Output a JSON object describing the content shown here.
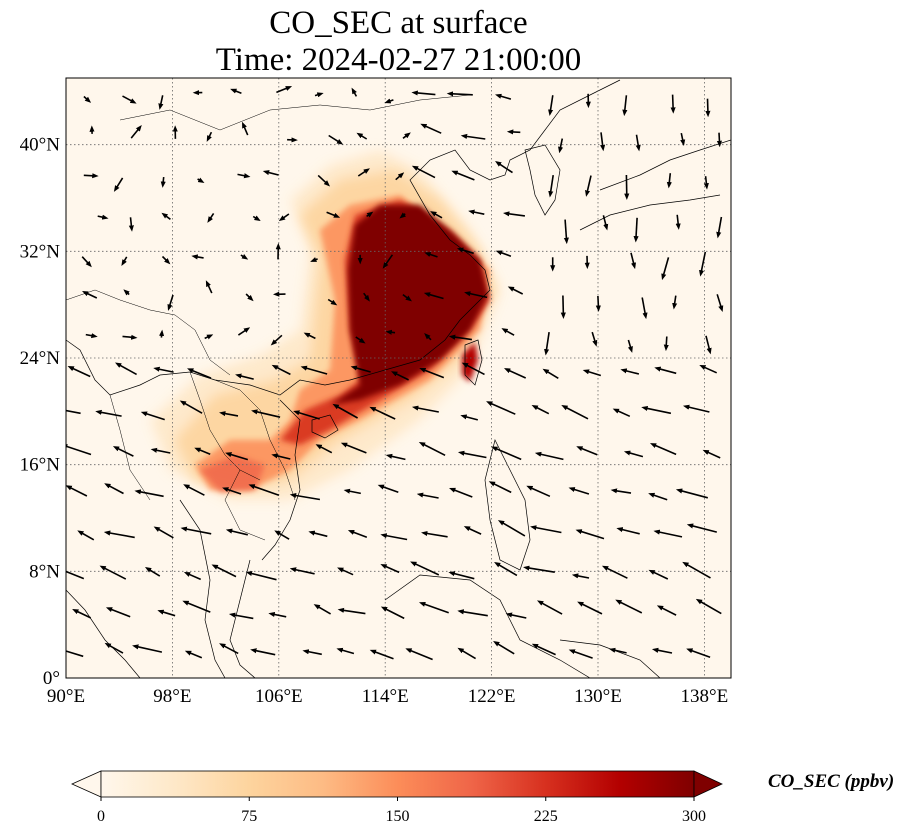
{
  "title_line1": "CO_SEC at surface",
  "title_line2": "Time: 2024-02-27 21:00:00",
  "map": {
    "lon_range": [
      90,
      140
    ],
    "lat_range": [
      0,
      45
    ],
    "lon_ticks": [
      {
        "value": 90,
        "label": "90°E"
      },
      {
        "value": 98,
        "label": "98°E"
      },
      {
        "value": 106,
        "label": "106°E"
      },
      {
        "value": 114,
        "label": "114°E"
      },
      {
        "value": 122,
        "label": "122°E"
      },
      {
        "value": 130,
        "label": "130°E"
      },
      {
        "value": 138,
        "label": "138°E"
      }
    ],
    "lat_ticks": [
      {
        "value": 0,
        "label": "0°"
      },
      {
        "value": 8,
        "label": "8°N"
      },
      {
        "value": 16,
        "label": "16°N"
      },
      {
        "value": 24,
        "label": "24°N"
      },
      {
        "value": 32,
        "label": "32°N"
      },
      {
        "value": 40,
        "label": "40°N"
      }
    ],
    "gridlines": true
  },
  "colorbar": {
    "label": "CO_SEC (ppbv)",
    "min": 0,
    "max": 300,
    "ticks": [
      "0",
      "75",
      "150",
      "225",
      "300"
    ],
    "colormap": "OrRd",
    "extend": "both",
    "colors": [
      "#fff7ec",
      "#fee8c8",
      "#fdd49e",
      "#fdbb84",
      "#fc8d59",
      "#ef6548",
      "#d7301f",
      "#b30000",
      "#7f0000"
    ]
  }
}
